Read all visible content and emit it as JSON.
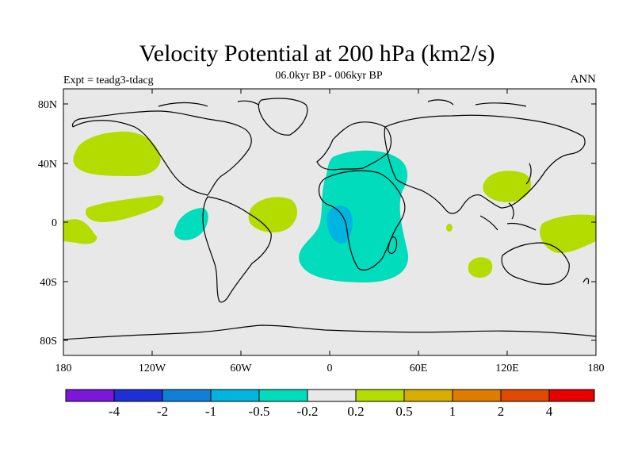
{
  "title": "Velocity Potential at 200 hPa (km2/s)",
  "subtitle": "06.0kyr BP - 006kyr BP",
  "left_label": "Expt = teadg3-tdacg",
  "right_label": "ANN",
  "map": {
    "projection": "cylindrical equidistant",
    "background_color": "#e8e8e8",
    "lat_ticks": [
      "80N",
      "40N",
      "0",
      "40S",
      "80S"
    ],
    "lon_ticks": [
      "180",
      "120W",
      "60W",
      "0",
      "60E",
      "120E",
      "180"
    ]
  },
  "colorbar": {
    "colors": [
      "#7a17d8",
      "#1f2fd6",
      "#0f7fd8",
      "#00b4e0",
      "#00dcbc",
      "#e8e8e8",
      "#b5dc00",
      "#d9ad00",
      "#e07b00",
      "#e04a00",
      "#e80000"
    ],
    "labels": [
      "-4",
      "-2",
      "-1",
      "-0.5",
      "-0.2",
      "0.2",
      "0.5",
      "1",
      "2",
      "4"
    ]
  }
}
